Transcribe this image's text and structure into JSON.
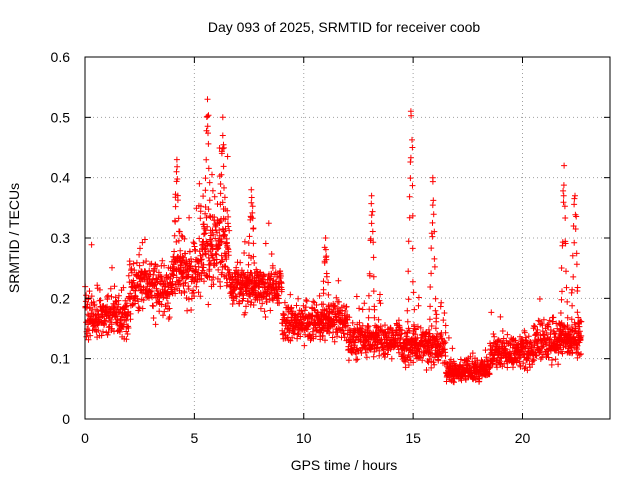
{
  "chart_data": {
    "type": "scatter",
    "title": "Day 093 of 2025, SRMTID for receiver coob",
    "xlabel": "GPS time / hours",
    "ylabel": "SRMTID / TECUs",
    "xlim": [
      0,
      24
    ],
    "ylim": [
      0,
      0.6
    ],
    "x_ticks": [
      0,
      5,
      10,
      15,
      20
    ],
    "x_tick_labels": [
      "0",
      "5",
      "10",
      "15",
      "20"
    ],
    "y_ticks": [
      0,
      0.1,
      0.2,
      0.3,
      0.4,
      0.5,
      0.6
    ],
    "y_tick_labels": [
      "0",
      "0.1",
      "0.2",
      "0.3",
      "0.4",
      "0.5",
      "0.6"
    ],
    "grid": true,
    "marker": "+",
    "marker_color": "#ff0000",
    "series_profile": [
      {
        "x_start": 0.0,
        "x_end": 2.0,
        "y_center": 0.17,
        "y_spread": 0.06
      },
      {
        "x_start": 2.0,
        "x_end": 4.0,
        "y_center": 0.22,
        "y_spread": 0.07
      },
      {
        "x_start": 4.0,
        "x_end": 5.2,
        "y_center": 0.24,
        "y_spread": 0.07
      },
      {
        "x_start": 5.2,
        "x_end": 6.6,
        "y_center": 0.28,
        "y_spread": 0.12
      },
      {
        "x_start": 6.6,
        "x_end": 9.0,
        "y_center": 0.22,
        "y_spread": 0.06
      },
      {
        "x_start": 9.0,
        "x_end": 12.0,
        "y_center": 0.16,
        "y_spread": 0.05
      },
      {
        "x_start": 12.0,
        "x_end": 14.5,
        "y_center": 0.13,
        "y_spread": 0.05
      },
      {
        "x_start": 14.5,
        "x_end": 16.5,
        "y_center": 0.12,
        "y_spread": 0.05
      },
      {
        "x_start": 16.5,
        "x_end": 18.5,
        "y_center": 0.08,
        "y_spread": 0.03
      },
      {
        "x_start": 18.5,
        "x_end": 20.5,
        "y_center": 0.11,
        "y_spread": 0.04
      },
      {
        "x_start": 20.5,
        "x_end": 22.7,
        "y_center": 0.13,
        "y_spread": 0.05
      }
    ],
    "peaks": [
      {
        "x": 4.2,
        "y": 0.43
      },
      {
        "x": 5.6,
        "y": 0.53
      },
      {
        "x": 6.3,
        "y": 0.5
      },
      {
        "x": 7.6,
        "y": 0.38
      },
      {
        "x": 11.0,
        "y": 0.3
      },
      {
        "x": 13.1,
        "y": 0.37
      },
      {
        "x": 14.9,
        "y": 0.51
      },
      {
        "x": 15.9,
        "y": 0.4
      },
      {
        "x": 21.9,
        "y": 0.42
      },
      {
        "x": 22.4,
        "y": 0.37
      }
    ],
    "n_points": 2600,
    "seed": 93
  }
}
